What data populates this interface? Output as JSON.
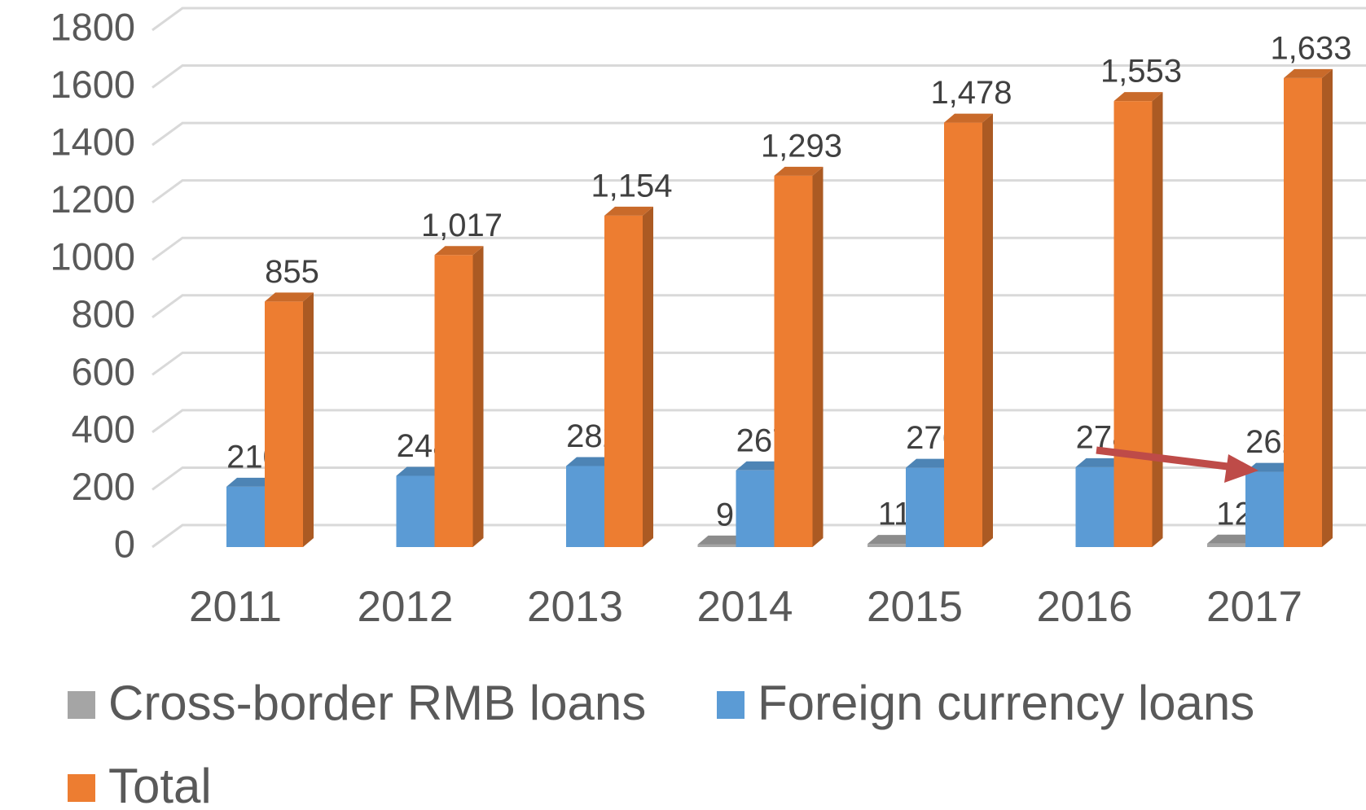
{
  "chart_data": {
    "type": "bar3d",
    "categories": [
      "2011",
      "2012",
      "2013",
      "2014",
      "2015",
      "2016",
      "2017"
    ],
    "series": [
      {
        "name": "Cross-border RMB loans",
        "color": "#a5a5a5",
        "values": [
          null,
          null,
          null,
          9,
          11,
          null,
          12
        ]
      },
      {
        "name": "Foreign currency loans",
        "color": "#5b9bd5",
        "values": [
          210,
          248,
          282,
          267,
          276,
          278,
          262
        ]
      },
      {
        "name": "Total",
        "color": "#ed7d31",
        "values": [
          855,
          1017,
          1154,
          1293,
          1478,
          1553,
          1633
        ],
        "value_labels": [
          "855",
          "1,017",
          "1,154",
          "1,293",
          "1,478",
          "1,553",
          "1,633"
        ]
      }
    ],
    "ylim": [
      0,
      1800
    ],
    "yticks": [
      0,
      200,
      400,
      600,
      800,
      1000,
      1200,
      1400,
      1600,
      1800
    ],
    "grid": true
  }
}
